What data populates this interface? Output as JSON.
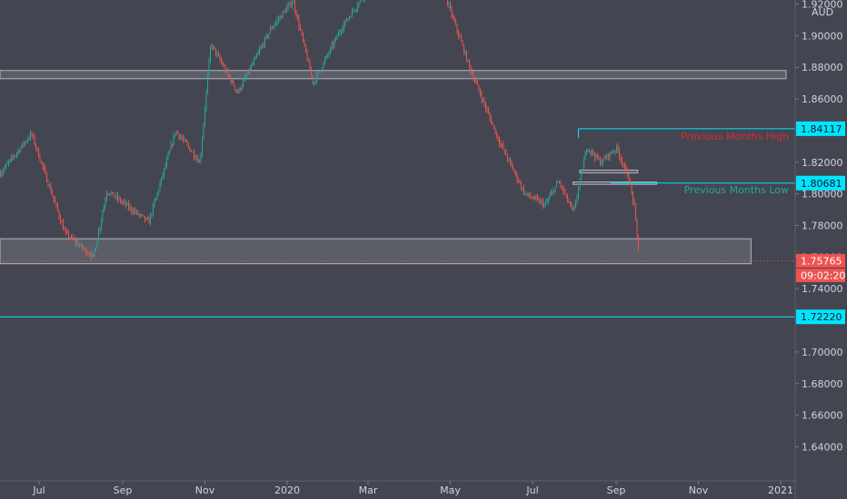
{
  "chart_data": {
    "type": "candlestick",
    "currency_label": "AUD",
    "x_ticks": [
      "Jul",
      "Sep",
      "Nov",
      "2020",
      "Mar",
      "May",
      "Jul",
      "Sep",
      "Nov",
      "2021"
    ],
    "y_ticks": [
      "1.92000",
      "1.90000",
      "1.88000",
      "1.86000",
      "1.84000",
      "1.82000",
      "1.80000",
      "1.78000",
      "1.76000",
      "1.74000",
      "1.72000",
      "1.70000",
      "1.68000",
      "1.66000",
      "1.64000"
    ],
    "ylim": [
      1.627,
      1.928
    ],
    "series_trend": [
      {
        "date": "2019-06-01",
        "close": 1.812
      },
      {
        "date": "2019-06-25",
        "close": 1.838
      },
      {
        "date": "2019-07-20",
        "close": 1.775
      },
      {
        "date": "2019-08-10",
        "close": 1.76
      },
      {
        "date": "2019-08-20",
        "close": 1.802
      },
      {
        "date": "2019-09-20",
        "close": 1.782
      },
      {
        "date": "2019-10-10",
        "close": 1.84
      },
      {
        "date": "2019-10-28",
        "close": 1.82
      },
      {
        "date": "2019-11-05",
        "close": 1.895
      },
      {
        "date": "2019-11-25",
        "close": 1.864
      },
      {
        "date": "2019-12-20",
        "close": 1.905
      },
      {
        "date": "2020-01-05",
        "close": 1.922
      },
      {
        "date": "2020-01-20",
        "close": 1.87
      },
      {
        "date": "2020-02-10",
        "close": 1.905
      },
      {
        "date": "2020-03-05",
        "close": 1.935
      },
      {
        "date": "2020-04-15",
        "close": 1.955
      },
      {
        "date": "2020-05-01",
        "close": 1.915
      },
      {
        "date": "2020-05-15",
        "close": 1.88
      },
      {
        "date": "2020-06-05",
        "close": 1.835
      },
      {
        "date": "2020-06-25",
        "close": 1.8
      },
      {
        "date": "2020-07-10",
        "close": 1.793
      },
      {
        "date": "2020-07-20",
        "close": 1.808
      },
      {
        "date": "2020-07-31",
        "close": 1.788
      },
      {
        "date": "2020-08-10",
        "close": 1.83
      },
      {
        "date": "2020-08-20",
        "close": 1.82
      },
      {
        "date": "2020-09-01",
        "close": 1.829
      },
      {
        "date": "2020-09-10",
        "close": 1.81
      },
      {
        "date": "2020-09-14",
        "close": 1.7925
      },
      {
        "date": "2020-09-18",
        "close": 1.7577
      }
    ],
    "horizontal_levels": [
      {
        "price": 1.84117,
        "label": "1.84117",
        "color": "#00e5ff"
      },
      {
        "price": 1.80681,
        "label": "1.80681",
        "color": "#00e5ff"
      },
      {
        "price": 1.7222,
        "label": "1.72220",
        "color": "#00e5ff"
      }
    ],
    "zones": [
      {
        "y_top": 1.878,
        "y_bottom": 1.8728,
        "x_start": "2019-06-01",
        "x_end": "2021-01-05"
      },
      {
        "y_top": 1.7716,
        "y_bottom": 1.7558,
        "x_start": "2019-06-01",
        "x_end": "2020-12-10"
      },
      {
        "y_top": 1.815,
        "y_bottom": 1.8132,
        "x_start": "2020-08-05",
        "x_end": "2020-09-17"
      },
      {
        "y_top": 1.8075,
        "y_bottom": 1.806,
        "x_start": "2020-07-31",
        "x_end": "2020-10-01"
      }
    ],
    "annotations": [
      {
        "text": "Previous Months High",
        "color": "#d32f2f"
      },
      {
        "text": "Previous Months Low",
        "color": "#26a69a"
      }
    ],
    "last_price": {
      "value": 1.75765,
      "label": "1.75765",
      "countdown": "09:02:20",
      "color": "#ef5350"
    }
  }
}
